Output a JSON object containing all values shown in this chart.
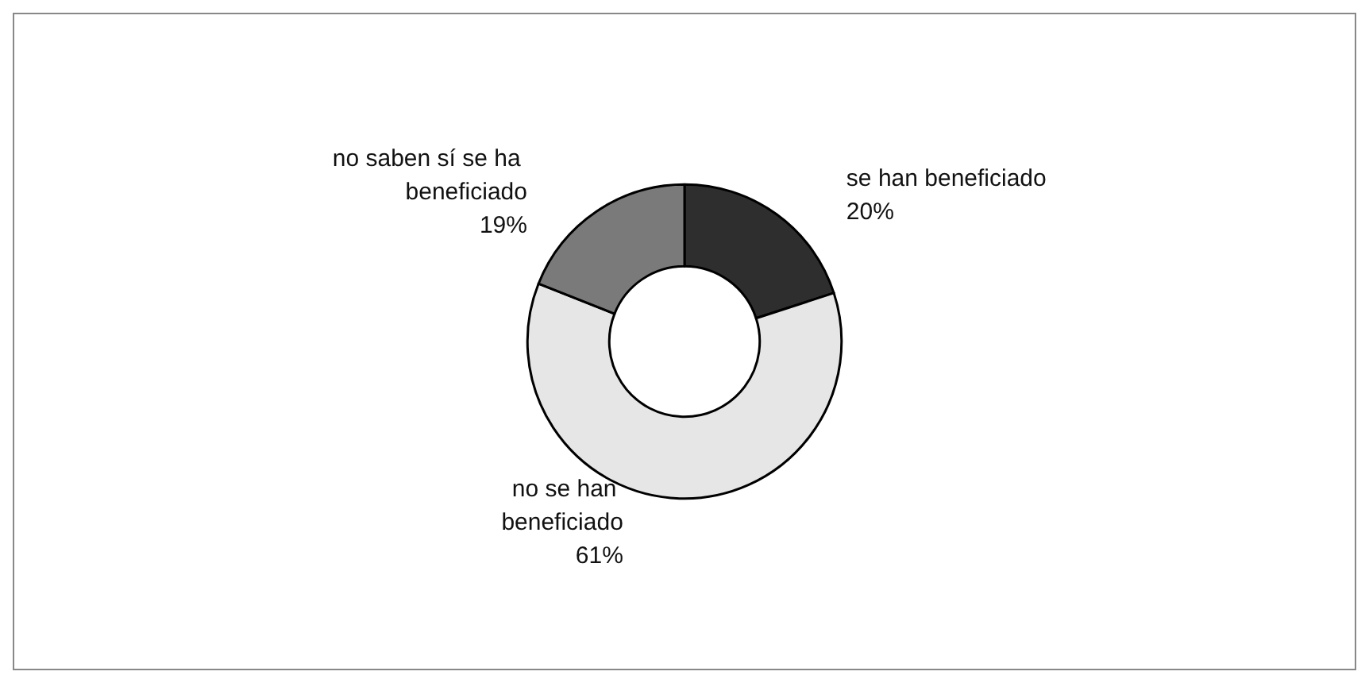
{
  "chart_data": {
    "type": "donut",
    "categories": [
      "se han beneficiado",
      "no se han beneficiado",
      "no saben sí se ha beneficiado"
    ],
    "values": [
      20,
      61,
      19
    ],
    "value_labels": [
      "20%",
      "61%",
      "19%"
    ],
    "colors": [
      "#2e2e2e",
      "#e6e6e6",
      "#7a7a7a"
    ],
    "legend": false
  }
}
